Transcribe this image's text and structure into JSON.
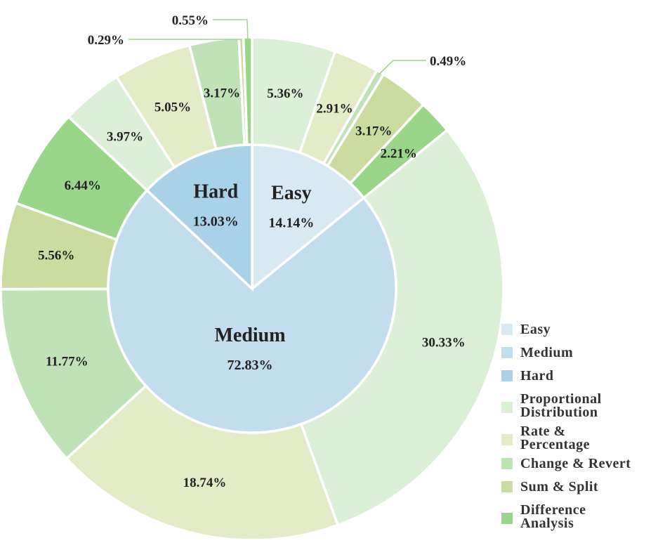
{
  "chart_data": {
    "type": "pie",
    "inner": [
      {
        "name": "Easy",
        "value": 14.14,
        "label": "14.14%",
        "color": "#d7e9f3"
      },
      {
        "name": "Medium",
        "value": 72.83,
        "label": "72.83%",
        "color": "#c2dded"
      },
      {
        "name": "Hard",
        "value": 13.03,
        "label": "13.03%",
        "color": "#a9d1e8"
      }
    ],
    "outer": [
      {
        "level": "Easy",
        "category": "Proportional Distribution",
        "value": 5.36,
        "label": "5.36%"
      },
      {
        "level": "Easy",
        "category": "Rate & Percentage",
        "value": 2.91,
        "label": "2.91%"
      },
      {
        "level": "Easy",
        "category": "Change & Revert",
        "value": 0.49,
        "label": "0.49%"
      },
      {
        "level": "Easy",
        "category": "Sum & Split",
        "value": 3.17,
        "label": "3.17%"
      },
      {
        "level": "Easy",
        "category": "Difference Analysis",
        "value": 2.21,
        "label": "2.21%"
      },
      {
        "level": "Medium",
        "category": "Proportional Distribution",
        "value": 30.33,
        "label": "30.33%"
      },
      {
        "level": "Medium",
        "category": "Rate & Percentage",
        "value": 18.74,
        "label": "18.74%"
      },
      {
        "level": "Medium",
        "category": "Change & Revert",
        "value": 11.77,
        "label": "11.77%"
      },
      {
        "level": "Medium",
        "category": "Sum & Split",
        "value": 5.56,
        "label": "5.56%"
      },
      {
        "level": "Medium",
        "category": "Difference Analysis",
        "value": 6.44,
        "label": "6.44%"
      },
      {
        "level": "Hard",
        "category": "Proportional Distribution",
        "value": 3.97,
        "label": "3.97%"
      },
      {
        "level": "Hard",
        "category": "Rate & Percentage",
        "value": 5.05,
        "label": "5.05%"
      },
      {
        "level": "Hard",
        "category": "Change & Revert",
        "value": 3.17,
        "label": "3.17%"
      },
      {
        "level": "Hard",
        "category": "Sum & Split",
        "value": 0.29,
        "label": "0.29%"
      },
      {
        "level": "Hard",
        "category": "Difference Analysis",
        "value": 0.55,
        "label": "0.55%"
      }
    ],
    "category_colors": {
      "Proportional Distribution": "#dcf0d8",
      "Rate & Percentage": "#e3ecc7",
      "Change & Revert": "#bfe3b6",
      "Sum & Split": "#cadca0",
      "Difference Analysis": "#99d68a"
    },
    "legend": {
      "position": "bottom-right",
      "items": [
        {
          "lines": [
            "Easy"
          ],
          "color": "#d7e9f3"
        },
        {
          "lines": [
            "Medium"
          ],
          "color": "#c2dded"
        },
        {
          "lines": [
            "Hard"
          ],
          "color": "#a9d1e8"
        },
        {
          "lines": [
            "Proportional",
            "Distribution"
          ],
          "color": "#dcf0d8"
        },
        {
          "lines": [
            "Rate &",
            "Percentage"
          ],
          "color": "#e3ecc7"
        },
        {
          "lines": [
            "Change & Revert"
          ],
          "color": "#bfe3b6"
        },
        {
          "lines": [
            "Sum & Split"
          ],
          "color": "#cadca0"
        },
        {
          "lines": [
            "Difference",
            "Analysis"
          ],
          "color": "#99d68a"
        }
      ]
    }
  }
}
